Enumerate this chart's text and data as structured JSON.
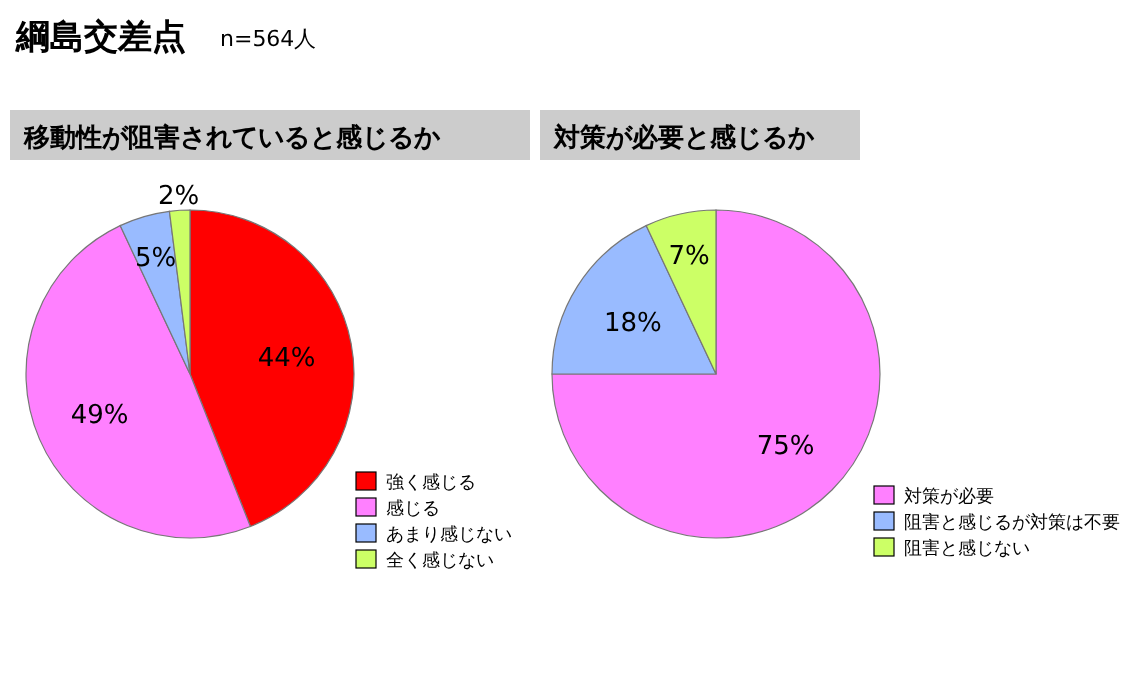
{
  "chart_data": [
    {
      "type": "other",
      "title": "綱島交差点",
      "subtitle": "n=564人"
    },
    {
      "type": "pie",
      "title": "移動性が阻害されていると感じるか",
      "categories": [
        "強く感じる",
        "感じる",
        "あまり感じない",
        "全く感じない"
      ],
      "values": [
        44,
        49,
        5,
        2
      ],
      "value_labels": [
        "44%",
        "49%",
        "5%",
        "2%"
      ],
      "colors": [
        "#ff0000",
        "#ff80ff",
        "#99bbff",
        "#ccff66"
      ],
      "legend": "bottom right"
    },
    {
      "type": "pie",
      "title": "対策が必要と感じるか",
      "categories": [
        "対策が必要",
        "阻害と感じるが対策は不要",
        "阻害と感じない"
      ],
      "values": [
        75,
        18,
        7
      ],
      "value_labels": [
        "75%",
        "18%",
        "7%"
      ],
      "colors": [
        "#ff80ff",
        "#99bbff",
        "#ccff66"
      ],
      "legend": "bottom right"
    }
  ]
}
